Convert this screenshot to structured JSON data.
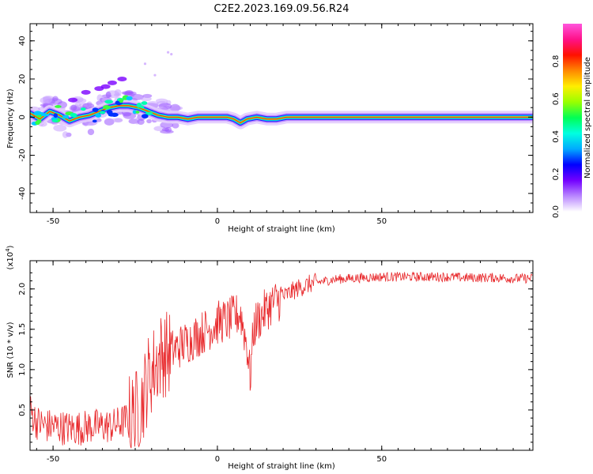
{
  "title": "C2E2.2023.169.09.56.R24",
  "chart_data": [
    {
      "type": "heatmap",
      "xlabel": "Height of straight line (km)",
      "ylabel": "Frequency (Hz)",
      "xlim": [
        -57,
        96
      ],
      "ylim": [
        -50,
        49
      ],
      "xticks": [
        -50,
        0,
        50
      ],
      "yticks": [
        -40,
        -20,
        0,
        20,
        40
      ],
      "grid": false,
      "ridge": {
        "x": [
          -57,
          -54,
          -51,
          -48,
          -45,
          -42,
          -39,
          -36,
          -33,
          -30,
          -27,
          -24,
          -21,
          -18,
          -15,
          -12,
          -9,
          -6,
          -3,
          0,
          3,
          5,
          7,
          9,
          12,
          15,
          18,
          21,
          24,
          30,
          40,
          50,
          60,
          70,
          80,
          90,
          96
        ],
        "y": [
          2,
          -1,
          3,
          1,
          -2,
          0,
          1,
          3,
          5,
          6,
          6,
          5,
          3,
          1,
          0,
          0,
          -1,
          0,
          0,
          0,
          0,
          -1,
          -3,
          -1,
          0,
          -1,
          -1,
          0,
          0,
          0,
          0,
          0,
          0,
          0,
          0,
          0,
          0
        ]
      },
      "colorbar": {
        "label": "Normalized spectral amplitude",
        "range": [
          0.0,
          1.0
        ],
        "ticks": [
          "0.0",
          "0.2",
          "0.4",
          "0.6",
          "0.8"
        ],
        "colors": [
          "#ffffff",
          "#b987ff",
          "#7300ff",
          "#0000ff",
          "#00aaff",
          "#00ffe0",
          "#00ff55",
          "#99ff00",
          "#ffee00",
          "#ff8800",
          "#ff1100",
          "#ff1188",
          "#ff55dd"
        ]
      }
    },
    {
      "type": "line",
      "xlabel": "Height of straight line (km)",
      "ylabel": "SNR (10 * v/v)",
      "multiplier": "(x10",
      "multiplier_exp": "4",
      "multiplier_close": ")",
      "xlim": [
        -57,
        96
      ],
      "ylim": [
        0.0,
        2.35
      ],
      "xticks": [
        -50,
        0,
        50
      ],
      "yticks": [
        "0.5",
        "1.0",
        "1.5",
        "2.0"
      ],
      "ytick_values": [
        0.5,
        1.0,
        1.5,
        2.0
      ],
      "color": "#e8282b",
      "series": [
        {
          "x": [
            -57,
            -55,
            -52,
            -50,
            -47,
            -44,
            -41,
            -38,
            -35,
            -32,
            -29,
            -27,
            -25,
            -23,
            -21,
            -19,
            -17,
            -15,
            -13,
            -11,
            -9,
            -7,
            -5,
            -3,
            -1,
            1,
            3,
            5,
            7,
            8,
            9,
            10,
            11,
            12,
            14,
            16,
            18,
            20,
            22,
            24,
            26,
            28,
            30,
            33,
            36,
            40,
            45,
            50,
            55,
            60,
            65,
            70,
            75,
            80,
            85,
            90,
            96
          ],
          "y": [
            0.5,
            0.35,
            0.3,
            0.3,
            0.28,
            0.27,
            0.28,
            0.3,
            0.3,
            0.3,
            0.35,
            0.4,
            0.45,
            0.6,
            0.9,
            1.05,
            1.2,
            1.2,
            1.25,
            1.3,
            1.35,
            1.4,
            1.45,
            1.5,
            1.55,
            1.6,
            1.6,
            1.65,
            1.7,
            1.5,
            1.3,
            0.9,
            1.5,
            1.6,
            1.7,
            1.8,
            1.85,
            1.9,
            1.95,
            2.0,
            2.03,
            2.06,
            2.08,
            2.1,
            2.12,
            2.13,
            2.14,
            2.15,
            2.15,
            2.15,
            2.15,
            2.15,
            2.14,
            2.14,
            2.14,
            2.13,
            2.13
          ]
        }
      ]
    }
  ]
}
